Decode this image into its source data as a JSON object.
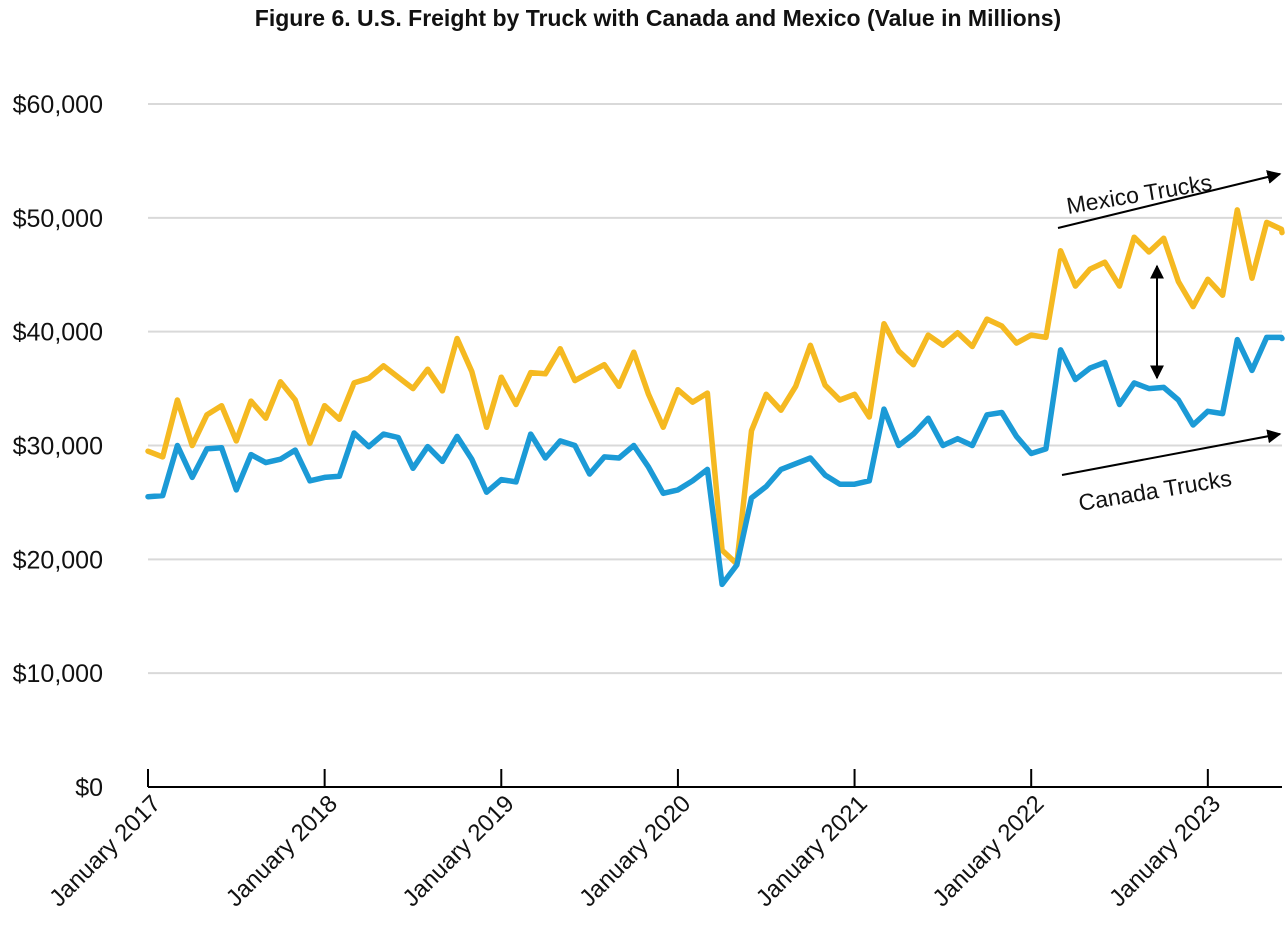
{
  "chart_data": {
    "type": "line",
    "title": "Figure 6. U.S. Freight by Truck with Canada and Mexico (Value in Millions)",
    "xlabel": "",
    "ylabel": "",
    "ylim": [
      0,
      60000
    ],
    "yticks": [
      {
        "value": 0,
        "label": "$0"
      },
      {
        "value": 10000,
        "label": "$10,000"
      },
      {
        "value": 20000,
        "label": "$20,000"
      },
      {
        "value": 30000,
        "label": "$30,000"
      },
      {
        "value": 40000,
        "label": "$40,000"
      },
      {
        "value": 50000,
        "label": "$50,000"
      },
      {
        "value": 60000,
        "label": "$60,000"
      }
    ],
    "xticks": [
      {
        "value": "2017-01",
        "label": "January 2017"
      },
      {
        "value": "2018-01",
        "label": "January 2018"
      },
      {
        "value": "2019-01",
        "label": "January 2019"
      },
      {
        "value": "2020-01",
        "label": "January 2020"
      },
      {
        "value": "2021-01",
        "label": "January 2021"
      },
      {
        "value": "2022-01",
        "label": "January 2022"
      },
      {
        "value": "2023-01",
        "label": "January 2023"
      }
    ],
    "x": [
      "2017-01",
      "2017-02",
      "2017-03",
      "2017-04",
      "2017-05",
      "2017-06",
      "2017-07",
      "2017-08",
      "2017-09",
      "2017-10",
      "2017-11",
      "2017-12",
      "2018-01",
      "2018-02",
      "2018-03",
      "2018-04",
      "2018-05",
      "2018-06",
      "2018-07",
      "2018-08",
      "2018-09",
      "2018-10",
      "2018-11",
      "2018-12",
      "2019-01",
      "2019-02",
      "2019-03",
      "2019-04",
      "2019-05",
      "2019-06",
      "2019-07",
      "2019-08",
      "2019-09",
      "2019-10",
      "2019-11",
      "2019-12",
      "2020-01",
      "2020-02",
      "2020-03",
      "2020-04",
      "2020-05",
      "2020-06",
      "2020-07",
      "2020-08",
      "2020-09",
      "2020-10",
      "2020-11",
      "2020-12",
      "2021-01",
      "2021-02",
      "2021-03",
      "2021-04",
      "2021-05",
      "2021-06",
      "2021-07",
      "2021-08",
      "2021-09",
      "2021-10",
      "2021-11",
      "2021-12",
      "2022-01",
      "2022-02",
      "2022-03",
      "2022-04",
      "2022-05",
      "2022-06",
      "2022-07",
      "2022-08",
      "2022-09",
      "2022-10",
      "2022-11",
      "2022-12",
      "2023-01",
      "2023-02",
      "2023-03",
      "2023-04",
      "2023-05",
      "2023-06",
      "2023-07"
    ],
    "grid": true,
    "series": [
      {
        "name": "Mexico Trucks",
        "color": "#F5B921",
        "values": [
          29500,
          29000,
          34000,
          30000,
          32700,
          33500,
          30400,
          33900,
          32400,
          35600,
          34000,
          30200,
          33500,
          32300,
          35500,
          35900,
          37000,
          36000,
          35000,
          36700,
          34800,
          39400,
          36500,
          31600,
          36000,
          33600,
          36400,
          36300,
          38500,
          35700,
          36400,
          37100,
          35200,
          38200,
          34500,
          31600,
          34900,
          33800,
          34600,
          20800,
          19600,
          31300,
          34500,
          33100,
          35200,
          38800,
          35300,
          34000,
          34500,
          32500,
          40700,
          38300,
          37100,
          39700,
          38800,
          39900,
          38700,
          41100,
          40500,
          39000,
          39700,
          39500,
          47100,
          44000,
          45500,
          46100,
          44000,
          48300,
          47000,
          48200,
          44400,
          42200,
          44600,
          43200,
          50700,
          44700,
          49600,
          49000,
          48700
        ]
      },
      {
        "name": "Canada Trucks",
        "color": "#1B9AD6",
        "values": [
          25500,
          25600,
          30000,
          27200,
          29700,
          29800,
          26100,
          29200,
          28500,
          28800,
          29600,
          26900,
          27200,
          27300,
          31100,
          29900,
          31000,
          30700,
          28000,
          29900,
          28600,
          30800,
          28800,
          25900,
          27000,
          26800,
          31000,
          28900,
          30400,
          30000,
          27500,
          29000,
          28900,
          30000,
          28100,
          25800,
          26100,
          26900,
          27900,
          17800,
          19500,
          25400,
          26400,
          27900,
          28400,
          28900,
          27400,
          26600,
          26600,
          26900,
          33200,
          30000,
          31000,
          32400,
          30000,
          30600,
          30000,
          32700,
          32900,
          30800,
          29300,
          29700,
          38400,
          35800,
          36800,
          37300,
          33600,
          35500,
          35000,
          35100,
          34000,
          31800,
          33000,
          32800,
          39300,
          36600,
          39500,
          39500,
          39400
        ]
      }
    ],
    "annotations": [
      {
        "text": "Mexico Trucks"
      },
      {
        "text": "Canada Trucks"
      }
    ]
  }
}
